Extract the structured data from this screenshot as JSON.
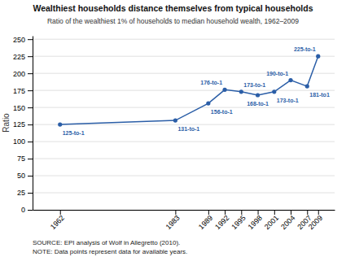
{
  "chart_data": {
    "type": "line",
    "title": "Wealthiest households distance themselves from typical households",
    "subtitle": "Ratio of the wealthiest 1% of households to median household wealth, 1962–2009",
    "x": [
      1962,
      1983,
      1989,
      1992,
      1995,
      1998,
      2001,
      2004,
      2007,
      2009
    ],
    "values": [
      125,
      131,
      156,
      176,
      173,
      168,
      173,
      190,
      181,
      225
    ],
    "value_labels": [
      "125-to-1",
      "131-to-1",
      "156-to-1",
      "176-to-1",
      "173-to-1",
      "168-to-1",
      "173-to-1",
      "190-to-1",
      "181-to1",
      "225-to-1"
    ],
    "data_labels": true,
    "color": "#2b5ea7",
    "marker": "circle",
    "ylabel": "Ratio",
    "xlim": [
      1957,
      2012
    ],
    "xticks": [
      1962,
      1983,
      1989,
      1992,
      1995,
      1998,
      2001,
      2004,
      2007,
      2009
    ],
    "ylim": [
      0,
      255
    ],
    "yticks": [
      0,
      25,
      50,
      75,
      100,
      125,
      150,
      175,
      200,
      225,
      250
    ],
    "grid": true,
    "annotations": [
      "SOURCE: EPI analysis of Wolf in Allegretto (2010).",
      "NOTE: Data points represent data for available years."
    ]
  }
}
